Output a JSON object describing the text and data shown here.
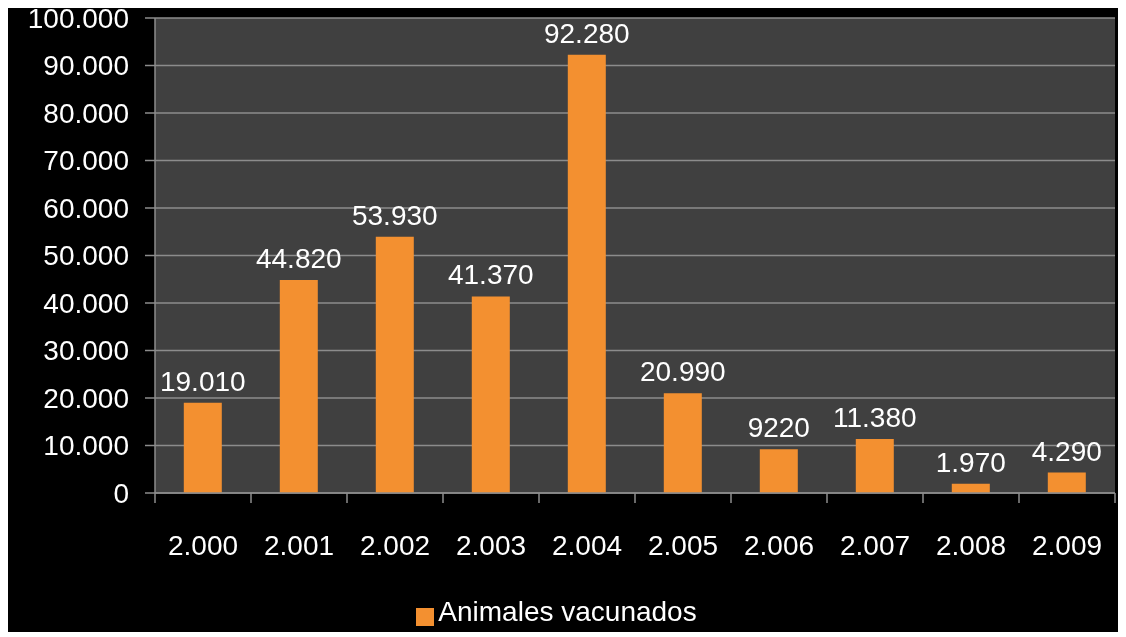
{
  "chart_data": {
    "type": "bar",
    "categories": [
      "2.000",
      "2.001",
      "2.002",
      "2.003",
      "2.004",
      "2.005",
      "2.006",
      "2.007",
      "2.008",
      "2.009"
    ],
    "series": [
      {
        "name": "Animales vacunados",
        "color": "#f39030",
        "values": [
          19010,
          44820,
          53930,
          41370,
          92280,
          20990,
          9220,
          11380,
          1970,
          4290
        ],
        "value_labels": [
          "19.010",
          "44.820",
          "53.930",
          "41.370",
          "92.280",
          "20.990",
          "9220",
          "11.380",
          "1.970",
          "4.290"
        ]
      }
    ],
    "ylim": [
      0,
      100000
    ],
    "yticks": [
      0,
      {
        "value": 10000,
        "label": "10.000"
      },
      {
        "value": 20000,
        "label": "20.000"
      },
      {
        "value": 30000,
        "label": "30.000"
      },
      {
        "value": 40000,
        "label": "40.000"
      },
      {
        "value": 50000,
        "label": "50.000"
      },
      {
        "value": 60000,
        "label": "60.000"
      },
      {
        "value": 70000,
        "label": "70.000"
      },
      {
        "value": 80000,
        "label": "80.000"
      },
      {
        "value": 90000,
        "label": "90.000"
      },
      {
        "value": 100000,
        "label": "100.000"
      }
    ],
    "grid": "y",
    "legend": "bottom"
  }
}
